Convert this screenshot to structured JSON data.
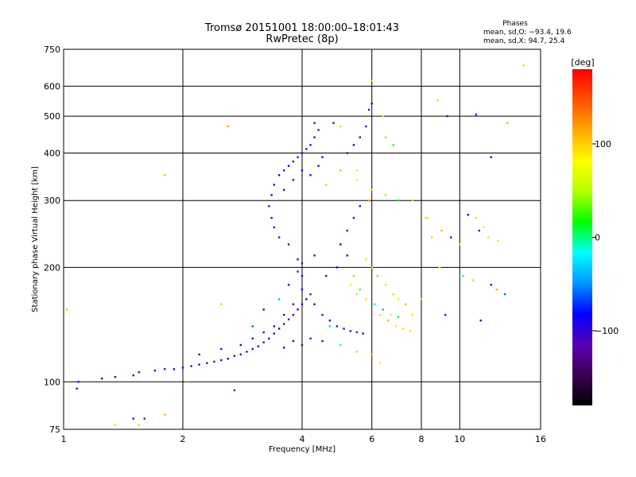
{
  "figure": {
    "title": "Tromsø 20151001 18:00:00–18:01:43",
    "subtitle": "RwPretec (8p)",
    "stats": {
      "heading": "Phases",
      "line_o": "mean, sd,O: −93.4, 19.6",
      "line_x": "mean, sd,X:  94.7, 25.4"
    }
  },
  "colorbar": {
    "label": "[deg]",
    "range": [
      -180,
      180
    ],
    "ticks": [
      {
        "value": 100,
        "label": "100"
      },
      {
        "value": 0,
        "label": "0"
      },
      {
        "value": -100,
        "label": "−100"
      }
    ],
    "colors": [
      "#000000",
      "#3c0050",
      "#5a00b4",
      "#0000ff",
      "#0096ff",
      "#00ffff",
      "#00ff00",
      "#b4ff00",
      "#ffff00",
      "#ffaa00",
      "#ff5000",
      "#ff0000"
    ]
  },
  "chart_data": {
    "type": "scatter",
    "xlabel": "Frequency [MHz]",
    "ylabel": "Stationary phase Virtual Height [km]",
    "xscale": "log",
    "yscale": "log",
    "xlim": [
      1,
      16
    ],
    "ylim": [
      75,
      750
    ],
    "grid": true,
    "xticks": [
      {
        "value": 1,
        "label": "1"
      },
      {
        "value": 2,
        "label": "2"
      },
      {
        "value": 4,
        "label": "4"
      },
      {
        "value": 6,
        "label": "6"
      },
      {
        "value": 8,
        "label": "8"
      },
      {
        "value": 10,
        "label": "10"
      },
      {
        "value": 16,
        "label": "16"
      }
    ],
    "yticks": [
      {
        "value": 75,
        "label": "75"
      },
      {
        "value": 100,
        "label": "100"
      },
      {
        "value": 200,
        "label": "200"
      },
      {
        "value": 300,
        "label": "300"
      },
      {
        "value": 400,
        "label": "400"
      },
      {
        "value": 500,
        "label": "500"
      },
      {
        "value": 600,
        "label": "600"
      },
      {
        "value": 750,
        "label": "750"
      }
    ],
    "color_by": "phase (deg)",
    "points": [
      [
        1.08,
        96,
        -110
      ],
      [
        1.09,
        100,
        -105
      ],
      [
        1.25,
        102,
        -100
      ],
      [
        1.35,
        103,
        -110
      ],
      [
        1.5,
        104,
        -95
      ],
      [
        1.55,
        106,
        -105
      ],
      [
        1.7,
        107,
        -100
      ],
      [
        1.8,
        108,
        -110
      ],
      [
        1.9,
        108,
        -95
      ],
      [
        2.0,
        109,
        -105
      ],
      [
        2.1,
        110,
        -100
      ],
      [
        2.2,
        111,
        -110
      ],
      [
        2.3,
        112,
        -100
      ],
      [
        2.4,
        113,
        -105
      ],
      [
        2.5,
        114,
        -95
      ],
      [
        2.6,
        115,
        -100
      ],
      [
        2.7,
        117,
        -110
      ],
      [
        2.8,
        118,
        -100
      ],
      [
        2.9,
        120,
        -105
      ],
      [
        3.0,
        122,
        -95
      ],
      [
        3.1,
        124,
        -100
      ],
      [
        3.2,
        127,
        -110
      ],
      [
        3.3,
        130,
        -105
      ],
      [
        3.4,
        134,
        -100
      ],
      [
        3.5,
        138,
        -95
      ],
      [
        3.6,
        142,
        -105
      ],
      [
        3.7,
        146,
        -110
      ],
      [
        3.8,
        150,
        -100
      ],
      [
        3.9,
        155,
        -95
      ],
      [
        4.0,
        160,
        -105
      ],
      [
        4.1,
        165,
        -100
      ],
      [
        4.2,
        170,
        -110
      ],
      [
        4.3,
        160,
        -100
      ],
      [
        4.5,
        150,
        -105
      ],
      [
        4.7,
        145,
        -95
      ],
      [
        4.9,
        140,
        -100
      ],
      [
        5.1,
        138,
        -110
      ],
      [
        5.3,
        136,
        -100
      ],
      [
        5.5,
        135,
        -105
      ],
      [
        5.7,
        134,
        -95
      ],
      [
        2.2,
        118,
        -130
      ],
      [
        2.5,
        122,
        -125
      ],
      [
        2.8,
        125,
        -120
      ],
      [
        3.0,
        130,
        -90
      ],
      [
        3.2,
        135,
        -120
      ],
      [
        3.4,
        140,
        -130
      ],
      [
        3.6,
        150,
        -125
      ],
      [
        3.8,
        160,
        -120
      ],
      [
        4.0,
        175,
        -90
      ],
      [
        4.0,
        190,
        -100
      ],
      [
        4.0,
        205,
        -110
      ],
      [
        3.9,
        210,
        -100
      ],
      [
        3.7,
        230,
        -105
      ],
      [
        3.5,
        240,
        -110
      ],
      [
        3.4,
        255,
        -100
      ],
      [
        3.35,
        270,
        -95
      ],
      [
        3.3,
        290,
        -105
      ],
      [
        3.35,
        310,
        -100
      ],
      [
        3.4,
        330,
        -110
      ],
      [
        3.5,
        350,
        -100
      ],
      [
        3.6,
        360,
        -105
      ],
      [
        3.7,
        370,
        -95
      ],
      [
        3.8,
        380,
        -100
      ],
      [
        3.9,
        390,
        -110
      ],
      [
        4.0,
        400,
        -100
      ],
      [
        4.1,
        410,
        -105
      ],
      [
        4.2,
        420,
        -95
      ],
      [
        4.3,
        440,
        -100
      ],
      [
        4.4,
        460,
        -110
      ],
      [
        4.0,
        360,
        -100
      ],
      [
        4.2,
        350,
        -105
      ],
      [
        4.4,
        370,
        -95
      ],
      [
        3.8,
        340,
        -100
      ],
      [
        3.6,
        320,
        -110
      ],
      [
        4.5,
        390,
        -100
      ],
      [
        5.2,
        400,
        -105
      ],
      [
        5.4,
        420,
        -95
      ],
      [
        5.6,
        440,
        -100
      ],
      [
        5.8,
        470,
        -110
      ],
      [
        5.9,
        520,
        -100
      ],
      [
        6.0,
        540,
        -100
      ],
      [
        5.0,
        230,
        -100
      ],
      [
        5.2,
        250,
        -105
      ],
      [
        5.4,
        270,
        -110
      ],
      [
        5.6,
        290,
        -100
      ],
      [
        5.8,
        210,
        90
      ],
      [
        6.0,
        200,
        100
      ],
      [
        6.2,
        190,
        110
      ],
      [
        6.5,
        180,
        95
      ],
      [
        6.8,
        170,
        100
      ],
      [
        7.0,
        165,
        90
      ],
      [
        7.3,
        160,
        110
      ],
      [
        5.5,
        170,
        100
      ],
      [
        5.8,
        165,
        95
      ],
      [
        6.3,
        150,
        100
      ],
      [
        6.6,
        145,
        110
      ],
      [
        6.9,
        140,
        90
      ],
      [
        7.2,
        138,
        100
      ],
      [
        7.5,
        136,
        95
      ],
      [
        5.3,
        180,
        60
      ],
      [
        5.6,
        175,
        30
      ],
      [
        6.1,
        160,
        -20
      ],
      [
        6.4,
        155,
        -40
      ],
      [
        6.7,
        150,
        60
      ],
      [
        7.0,
        148,
        10
      ],
      [
        4.6,
        330,
        100
      ],
      [
        5.0,
        360,
        110
      ],
      [
        5.5,
        340,
        90
      ],
      [
        6.0,
        320,
        60
      ],
      [
        6.5,
        310,
        100
      ],
      [
        7.0,
        300,
        20
      ],
      [
        7.6,
        300,
        100
      ],
      [
        8.2,
        270,
        95
      ],
      [
        8.5,
        240,
        100
      ],
      [
        9.0,
        250,
        110
      ],
      [
        9.5,
        240,
        -110
      ],
      [
        10.0,
        230,
        60
      ],
      [
        10.5,
        275,
        -100
      ],
      [
        11.0,
        270,
        100
      ],
      [
        11.5,
        255,
        90
      ],
      [
        11.8,
        240,
        60
      ],
      [
        11.2,
        250,
        -100
      ],
      [
        12.5,
        235,
        95
      ],
      [
        12.0,
        390,
        -100
      ],
      [
        14.5,
        680,
        100
      ],
      [
        13.2,
        480,
        110
      ],
      [
        9.3,
        500,
        -110
      ],
      [
        11.0,
        505,
        -105
      ],
      [
        8.8,
        550,
        100
      ],
      [
        8.3,
        270,
        95
      ],
      [
        8.9,
        200,
        80
      ],
      [
        10.2,
        190,
        -20
      ],
      [
        10.8,
        185,
        100
      ],
      [
        12.0,
        180,
        -100
      ],
      [
        12.4,
        175,
        110
      ],
      [
        13.0,
        170,
        -60
      ],
      [
        9.2,
        150,
        -110
      ],
      [
        11.3,
        145,
        -100
      ],
      [
        8.0,
        165,
        100
      ],
      [
        7.6,
        150,
        95
      ],
      [
        1.02,
        155,
        110
      ],
      [
        1.8,
        350,
        40
      ],
      [
        2.6,
        470,
        120
      ],
      [
        2.7,
        95,
        -110
      ],
      [
        2.5,
        160,
        100
      ],
      [
        1.5,
        80,
        -100
      ],
      [
        1.6,
        80,
        -110
      ],
      [
        1.8,
        82,
        110
      ],
      [
        2.05,
        100,
        120
      ],
      [
        1.55,
        77,
        100
      ],
      [
        1.35,
        77,
        100
      ],
      [
        6.0,
        620,
        100
      ],
      [
        6.4,
        500,
        60
      ],
      [
        6.5,
        440,
        40
      ],
      [
        6.8,
        420,
        20
      ],
      [
        5.9,
        300,
        120
      ],
      [
        5.5,
        360,
        90
      ],
      [
        5.0,
        470,
        100
      ],
      [
        4.8,
        480,
        -110
      ],
      [
        4.3,
        480,
        -100
      ],
      [
        4.7,
        140,
        -30
      ],
      [
        5.0,
        125,
        -20
      ],
      [
        5.5,
        120,
        100
      ],
      [
        6.0,
        118,
        110
      ],
      [
        6.3,
        112,
        90
      ],
      [
        4.2,
        130,
        -120
      ],
      [
        4.5,
        128,
        -100
      ],
      [
        4.0,
        125,
        -110
      ],
      [
        3.8,
        128,
        -100
      ],
      [
        3.6,
        123,
        -95
      ],
      [
        3.0,
        140,
        -60
      ],
      [
        3.2,
        155,
        -80
      ],
      [
        3.5,
        165,
        -40
      ],
      [
        3.7,
        180,
        -90
      ],
      [
        3.9,
        195,
        -70
      ],
      [
        4.3,
        215,
        -100
      ],
      [
        4.6,
        190,
        -110
      ],
      [
        4.9,
        200,
        -100
      ],
      [
        5.2,
        215,
        -95
      ],
      [
        5.4,
        190,
        110
      ]
    ]
  }
}
